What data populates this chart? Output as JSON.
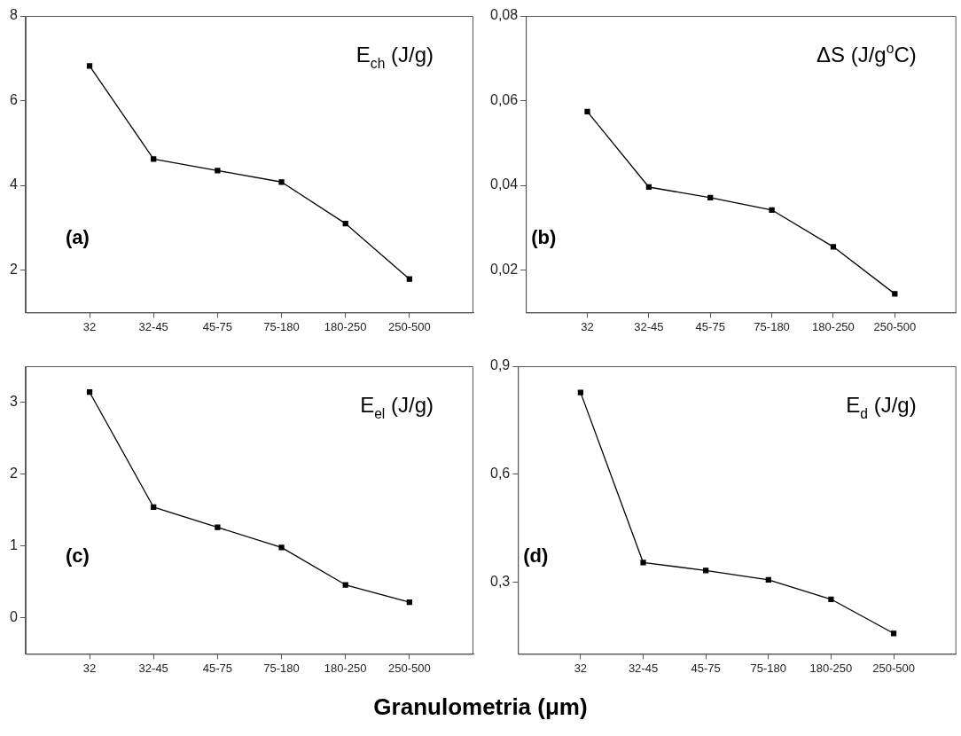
{
  "chart_data": [
    {
      "type": "line",
      "categories": [
        "32",
        "32-45",
        "45-75",
        "75-180",
        "180-250",
        "250-500"
      ],
      "values": [
        6.82,
        4.62,
        4.35,
        4.08,
        3.1,
        1.79
      ],
      "color": "#000000",
      "marker": "square",
      "ylim": [
        1,
        8
      ],
      "yticks": [
        2,
        4,
        6,
        8
      ],
      "annotations": [
        "E$_{ch}$ (J/g)",
        "(a)"
      ],
      "grid": false,
      "legend": false
    },
    {
      "type": "line",
      "categories": [
        "32",
        "32-45",
        "45-75",
        "75-180",
        "180-250",
        "250-500"
      ],
      "values": [
        0.0574,
        0.0396,
        0.0371,
        0.0342,
        0.0255,
        0.0144
      ],
      "color": "#000000",
      "marker": "square",
      "ylim": [
        0.01,
        0.08
      ],
      "yticks": [
        {
          "value": 0.02,
          "label": "0,02"
        },
        {
          "value": 0.04,
          "label": "0,04"
        },
        {
          "value": 0.06,
          "label": "0,06"
        },
        {
          "value": 0.08,
          "label": "0,08"
        }
      ],
      "annotations": [
        "ΔS (J/g$^{o}$C)",
        "(b)"
      ],
      "grid": false,
      "legend": false
    },
    {
      "type": "line",
      "categories": [
        "32",
        "32-45",
        "45-75",
        "75-180",
        "180-250",
        "250-500"
      ],
      "values": [
        3.14,
        1.54,
        1.26,
        0.98,
        0.46,
        0.22
      ],
      "color": "#000000",
      "marker": "square",
      "ylim": [
        -0.5,
        3.5
      ],
      "yticks": [
        0,
        1,
        2,
        3
      ],
      "annotations": [
        "E$_{el}$ (J/g)",
        "(c)"
      ],
      "xlabel": "Granulometria (μm)",
      "grid": false,
      "legend": false
    },
    {
      "type": "line",
      "categories": [
        "32",
        "32-45",
        "45-75",
        "75-180",
        "180-250",
        "250-500"
      ],
      "values": [
        0.827,
        0.354,
        0.332,
        0.306,
        0.252,
        0.157
      ],
      "color": "#000000",
      "marker": "square",
      "ylim": [
        0.1,
        0.9
      ],
      "yticks": [
        {
          "value": 0.3,
          "label": "0,3"
        },
        {
          "value": 0.6,
          "label": "0,6"
        },
        {
          "value": 0.9,
          "label": "0,9"
        }
      ],
      "annotations": [
        "E$_{d}$ (J/g)",
        "(d)"
      ],
      "grid": false,
      "legend": false
    }
  ]
}
